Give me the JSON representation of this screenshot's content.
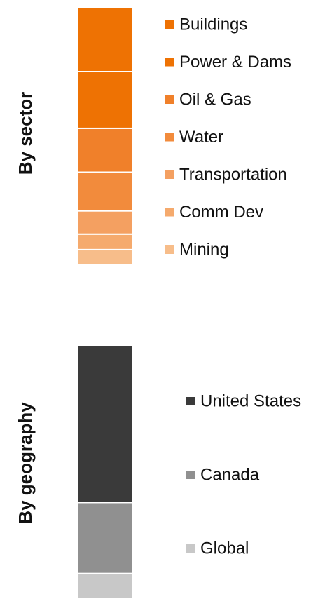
{
  "chart_data": [
    {
      "type": "stacked_bar",
      "ylabel": "By sector",
      "series": [
        {
          "name": "Buildings",
          "color": "#ee7203",
          "values": [
            25
          ]
        },
        {
          "name": "Power & Dams",
          "color": "#ee7203",
          "values": [
            22
          ]
        },
        {
          "name": "Oil & Gas",
          "color": "#f0802a",
          "values": [
            17
          ]
        },
        {
          "name": "Water",
          "color": "#f28b3c",
          "values": [
            15
          ]
        },
        {
          "name": "Transportation",
          "color": "#f4a061",
          "values": [
            9
          ]
        },
        {
          "name": "Comm Dev",
          "color": "#f5aa6d",
          "values": [
            6
          ]
        },
        {
          "name": "Mining",
          "color": "#f7bd8a",
          "values": [
            6
          ]
        }
      ]
    },
    {
      "type": "stacked_bar",
      "ylabel": "By geography",
      "series": [
        {
          "name": "United States",
          "color": "#3a3a3a",
          "values": [
            62
          ]
        },
        {
          "name": "Canada",
          "color": "#909090",
          "values": [
            28
          ]
        },
        {
          "name": "Global",
          "color": "#c8c8c8",
          "values": [
            10
          ]
        }
      ]
    }
  ]
}
